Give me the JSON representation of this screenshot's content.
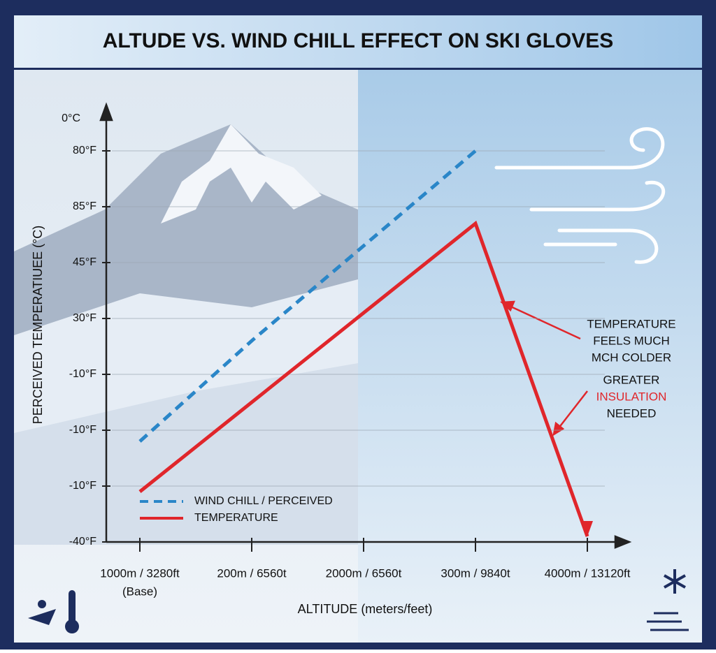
{
  "chart_data": {
    "type": "line",
    "title": "ALTUDE VS. WIND CHILL EFFECT ON SKI GLOVES",
    "y_axis_label": "PERCEIVED TEMPERATIUEE (°C)",
    "y_axis_top_label": "0°C",
    "x_axis_label": "ALTITUDE (meters/feet)",
    "categories": [
      "1000m / 3280ft",
      "200m / 6560t",
      "2000m / 6560t",
      "300m / 9840t",
      "4000m / 13120ft"
    ],
    "first_category_note": "(Base)",
    "ylim": [
      0,
      7.75
    ],
    "yticks": [
      {
        "value": 0,
        "label": "-40°F"
      },
      {
        "value": 1,
        "label": "-10°F"
      },
      {
        "value": 2,
        "label": "-10°F"
      },
      {
        "value": 3,
        "label": "-10°F"
      },
      {
        "value": 4,
        "label": "30°F"
      },
      {
        "value": 5,
        "label": "45°F"
      },
      {
        "value": 6,
        "label": "85°F"
      },
      {
        "value": 7,
        "label": "80°F"
      }
    ],
    "grid": true,
    "series": [
      {
        "name": "WIND CHILL / PERCEIVED",
        "color": "#2a86c8",
        "dashed": true,
        "values": [
          1.8,
          3.6,
          5.3,
          7.0,
          null
        ]
      },
      {
        "name": "TEMPERATURE",
        "color": "#e0262b",
        "dashed": false,
        "values": [
          0.9,
          2.5,
          4.1,
          5.7,
          0.1
        ]
      }
    ],
    "annotations": {
      "feels": [
        "TEMPERATURE",
        "FEELS MUCH",
        "MCH COLDER"
      ],
      "insulation": [
        "GREATER",
        "INSULATION",
        "NEEDED"
      ]
    }
  }
}
